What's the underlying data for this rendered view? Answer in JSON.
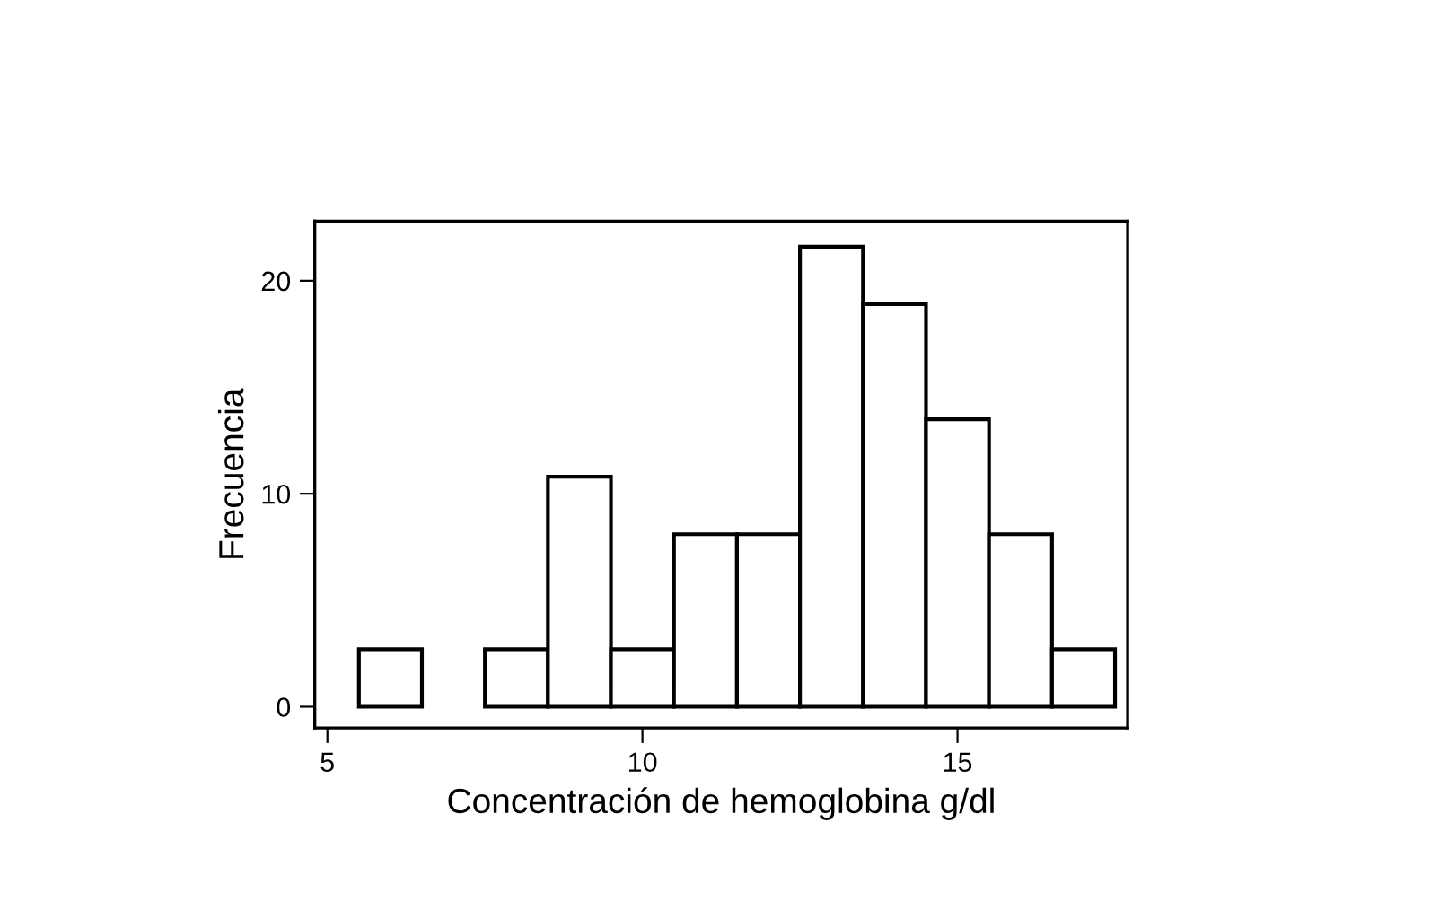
{
  "chart_data": {
    "type": "histogram",
    "xlabel": "Concentración de hemoglobina g/dl",
    "ylabel": "Frecuencia",
    "bins": [
      5.5,
      6.5,
      7.5,
      8.5,
      9.5,
      10.5,
      11.5,
      12.5,
      13.5,
      14.5,
      15.5,
      16.5,
      17.5
    ],
    "values": [
      2.7,
      0,
      2.7,
      10.8,
      2.7,
      8.1,
      8.1,
      21.6,
      18.9,
      13.5,
      8.1,
      2.7
    ],
    "color": "#ffffff",
    "xlim": [
      4.8,
      17.7
    ],
    "ylim": [
      -1,
      22.8
    ],
    "xticks": [
      5,
      10,
      15
    ],
    "yticks": [
      0,
      10,
      20
    ],
    "grid": false
  }
}
